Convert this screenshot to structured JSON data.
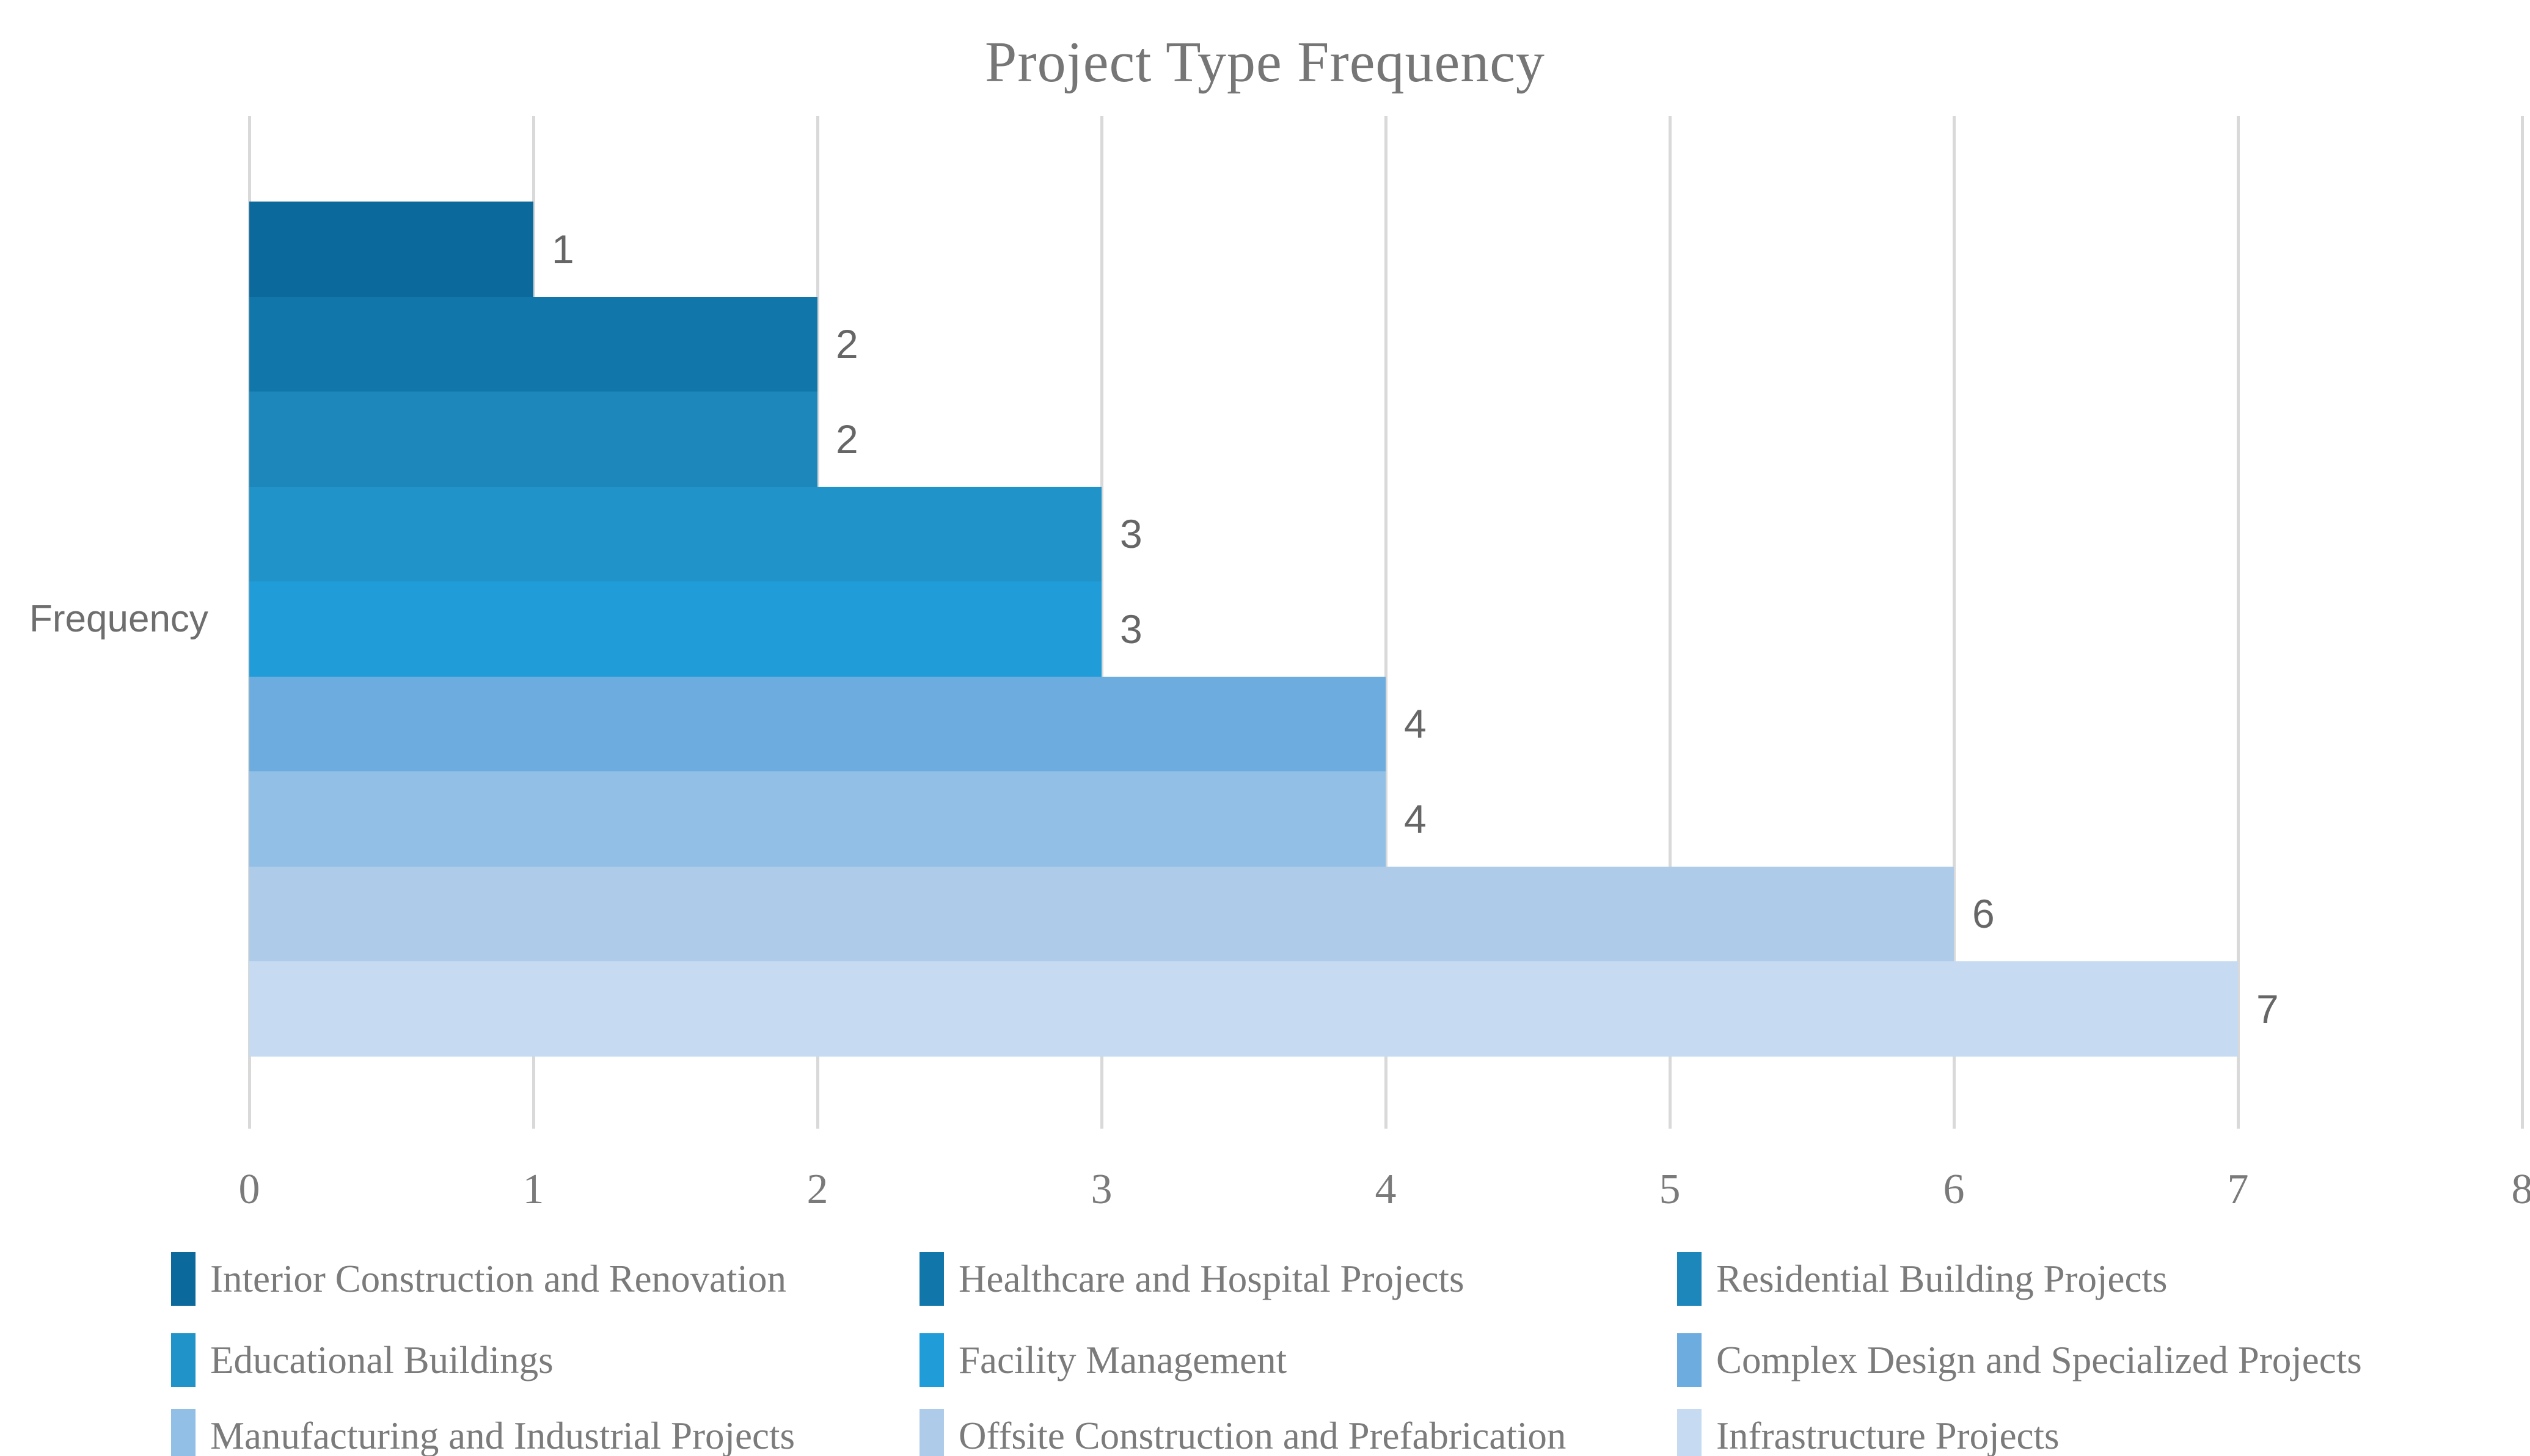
{
  "chart_data": {
    "type": "bar",
    "orientation": "horizontal",
    "title": "Project Type Frequency",
    "ylabel": "Frequency",
    "xlabel": "",
    "xlim": [
      0,
      8
    ],
    "xticks": [
      0,
      1,
      2,
      3,
      4,
      5,
      6,
      7,
      8
    ],
    "grid": true,
    "legend_position": "bottom",
    "categories": [
      "Interior Construction and Renovation",
      "Healthcare and Hospital Projects",
      "Residential Building Projects",
      "Educational Buildings",
      "Facility Management",
      "Complex Design and Specialized Projects",
      "Manufacturing and Industrial Projects",
      "Offsite Construction and Prefabrication",
      "Infrastructure Projects"
    ],
    "values": [
      1,
      2,
      2,
      3,
      3,
      4,
      4,
      6,
      7
    ],
    "data_labels": [
      "1",
      "2",
      "2",
      "3",
      "3",
      "4",
      "4",
      "6",
      "7"
    ],
    "colors": [
      "#0b699b",
      "#1176a9",
      "#1d86ba",
      "#2093c9",
      "#209cd8",
      "#6cacdf",
      "#92bfe6",
      "#aecbe9",
      "#c6dbf1"
    ]
  },
  "style_colors": {
    "gridline": "#d9d9d9",
    "title_text": "#767676",
    "legend_text": "#7b7b7b",
    "tick_text": "#7a7a7a",
    "data_label_text": "#666666",
    "background": "#ffffff"
  }
}
